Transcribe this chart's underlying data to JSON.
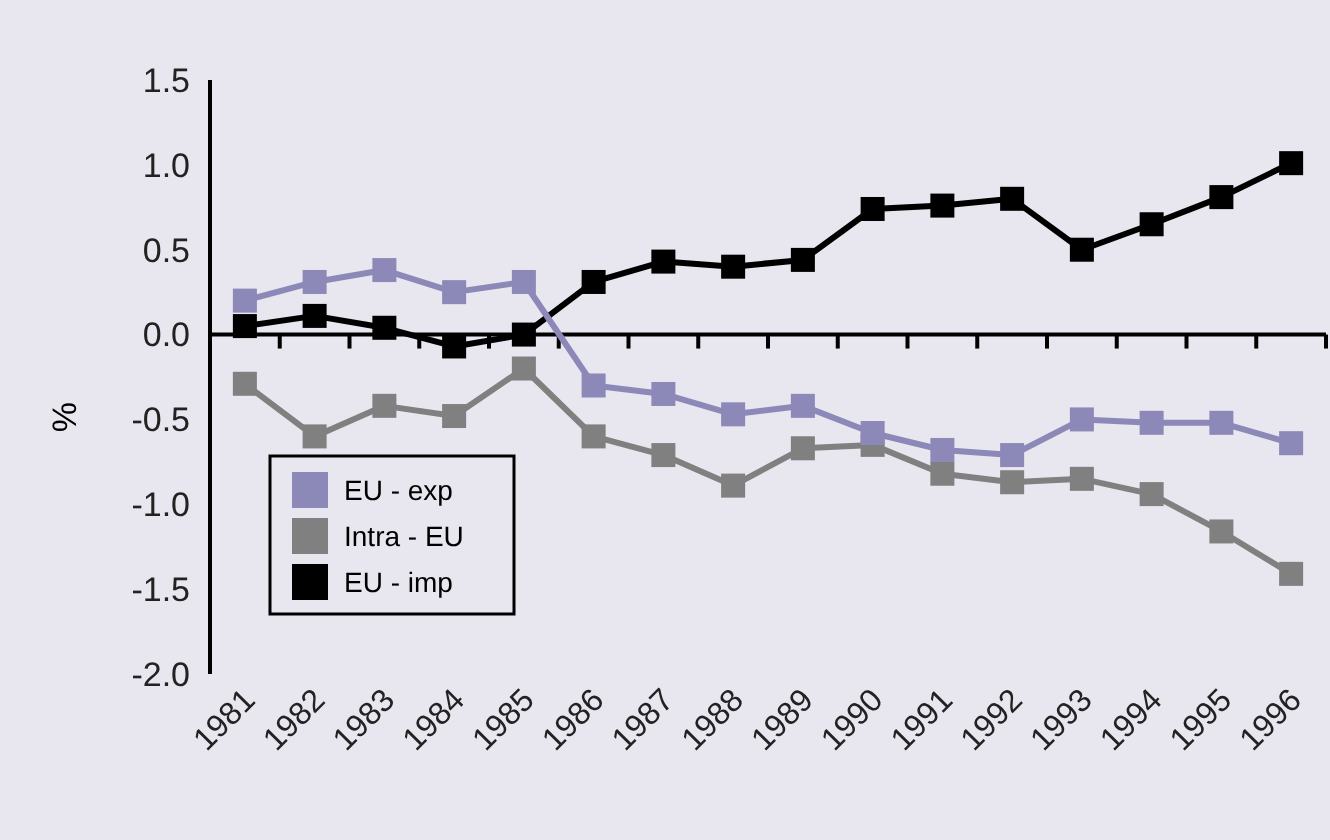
{
  "chart_data": {
    "type": "line",
    "ylabel": "%",
    "categories": [
      "1981",
      "1982",
      "1983",
      "1984",
      "1985",
      "1986",
      "1987",
      "1988",
      "1989",
      "1990",
      "1991",
      "1992",
      "1993",
      "1994",
      "1995",
      "1996"
    ],
    "series": [
      {
        "name": "EU - exp",
        "color": "#8c88b8",
        "values": [
          0.2,
          0.31,
          0.38,
          0.25,
          0.31,
          -0.3,
          -0.35,
          -0.47,
          -0.42,
          -0.58,
          -0.68,
          -0.71,
          -0.5,
          -0.52,
          -0.52,
          -0.64
        ]
      },
      {
        "name": "Intra - EU",
        "color": "#808080",
        "values": [
          -0.29,
          -0.6,
          -0.42,
          -0.48,
          -0.2,
          -0.6,
          -0.71,
          -0.89,
          -0.67,
          -0.65,
          -0.82,
          -0.87,
          -0.85,
          -0.94,
          -1.16,
          -1.41
        ]
      },
      {
        "name": "EU - imp",
        "color": "#000000",
        "values": [
          0.05,
          0.11,
          0.04,
          -0.07,
          0.0,
          0.31,
          0.43,
          0.4,
          0.44,
          0.74,
          0.76,
          0.8,
          0.5,
          0.65,
          0.81,
          1.01
        ]
      }
    ],
    "ylim": [
      -2,
      1.5
    ],
    "yticks": [
      {
        "value": -2,
        "label": "-2.0"
      },
      {
        "value": -1.5,
        "label": "-1.5"
      },
      {
        "value": -1,
        "label": "-1.0"
      },
      {
        "value": -0.5,
        "label": "-0.5"
      },
      {
        "value": 0,
        "label": "0.0"
      },
      {
        "value": 0.5,
        "label": "0.5"
      },
      {
        "value": 1,
        "label": "1.0"
      },
      {
        "value": 1.5,
        "label": "1.5"
      }
    ],
    "legend": "bottom left",
    "marker": "square",
    "line_style": "solid"
  }
}
